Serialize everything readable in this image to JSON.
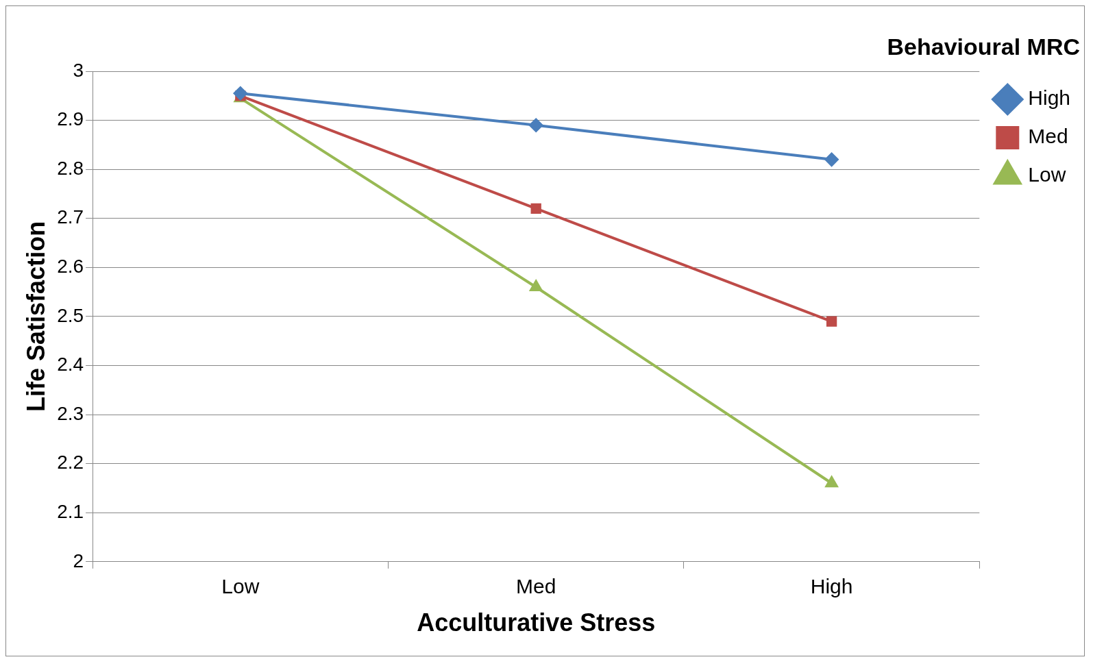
{
  "chart_data": {
    "type": "line",
    "xlabel": "Acculturative Stress",
    "ylabel": "Life Satisfaction",
    "legend_title": "Behavioural MRC",
    "categories": [
      "Low",
      "Med",
      "High"
    ],
    "series": [
      {
        "name": "High",
        "color": "#4a7ebb",
        "marker": "diamond",
        "values": [
          2.955,
          2.89,
          2.82
        ]
      },
      {
        "name": "Med",
        "color": "#be4b48",
        "marker": "square",
        "values": [
          2.95,
          2.72,
          2.49
        ]
      },
      {
        "name": "Low",
        "color": "#98b954",
        "marker": "triangle",
        "values": [
          2.945,
          2.56,
          2.16
        ]
      }
    ],
    "ylim": [
      2,
      3
    ],
    "yticks": [
      2,
      2.1,
      2.2,
      2.3,
      2.4,
      2.5,
      2.6,
      2.7,
      2.8,
      2.9,
      3
    ],
    "grid": "y",
    "legend": "right"
  }
}
